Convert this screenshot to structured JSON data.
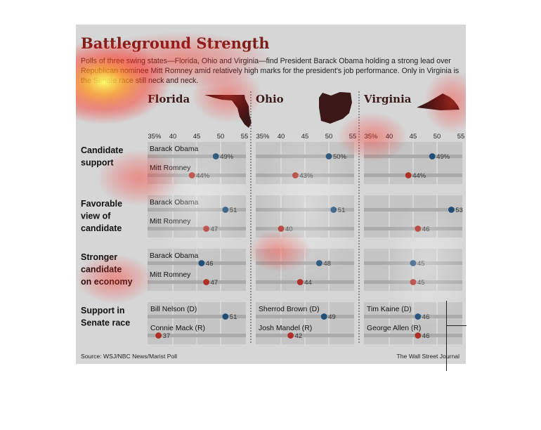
{
  "title": "Battleground Strength",
  "subtitle": "Polls of three swing states—Florida, Ohio and Virginia—find President Barack Obama holding a strong lead over Republican nominee Mitt Romney amid relatively high marks for the president's job performance. Only in Virginia is the Senate race still neck and neck.",
  "source": "Source: WSJ/NBC News/Marist Poll",
  "credit": "The Wall Street Journal",
  "colors": {
    "obama": "#1f4e79",
    "romney": "#b03028",
    "title": "#7a1f1c",
    "panel": "#d6d6d6"
  },
  "chart_data": {
    "type": "scatter",
    "xlim": [
      35,
      55
    ],
    "tick_labels": [
      "35%",
      "40",
      "45",
      "50",
      "55"
    ],
    "ticks": [
      35,
      40,
      45,
      50,
      55
    ],
    "states": [
      "Florida",
      "Ohio",
      "Virginia"
    ],
    "questions": [
      {
        "label": [
          "Candidate",
          "support"
        ],
        "series": [
          {
            "name": "Barack Obama",
            "party": "dem",
            "values": [
              49,
              50,
              49
            ],
            "labels": [
              "49%",
              "50%",
              "49%"
            ]
          },
          {
            "name": "Mitt Romney",
            "party": "rep",
            "values": [
              44,
              43,
              44
            ],
            "labels": [
              "44%",
              "43%",
              "44%"
            ]
          }
        ]
      },
      {
        "label": [
          "Favorable",
          "view of",
          "candidate"
        ],
        "series": [
          {
            "name": "Barack Obama",
            "party": "dem",
            "values": [
              51,
              51,
              53
            ],
            "labels": [
              "51",
              "51",
              "53"
            ]
          },
          {
            "name": "Mitt Romney",
            "party": "rep",
            "values": [
              47,
              40,
              46
            ],
            "labels": [
              "47",
              "40",
              "46"
            ]
          }
        ]
      },
      {
        "label": [
          "Stronger",
          "candidate",
          "on economy"
        ],
        "series": [
          {
            "name": "Barack Obama",
            "party": "dem",
            "values": [
              46,
              48,
              45
            ],
            "labels": [
              "46",
              "48",
              "45"
            ]
          },
          {
            "name": "Mitt Romney",
            "party": "rep",
            "values": [
              47,
              44,
              45
            ],
            "labels": [
              "47",
              "44",
              "45"
            ]
          }
        ]
      },
      {
        "label": [
          "Support in",
          "Senate race"
        ],
        "per_state_names": true,
        "series": [
          {
            "names": [
              "Bill Nelson (D)",
              "Sherrod Brown (D)",
              "Tim Kaine (D)"
            ],
            "party": "dem",
            "values": [
              51,
              49,
              46
            ],
            "labels": [
              "51",
              "49",
              "46"
            ]
          },
          {
            "names": [
              "Connie Mack (R)",
              "Josh Mandel (R)",
              "George Allen (R)"
            ],
            "party": "rep",
            "values": [
              37,
              42,
              46
            ],
            "labels": [
              "37",
              "42",
              "46"
            ]
          }
        ]
      }
    ]
  }
}
